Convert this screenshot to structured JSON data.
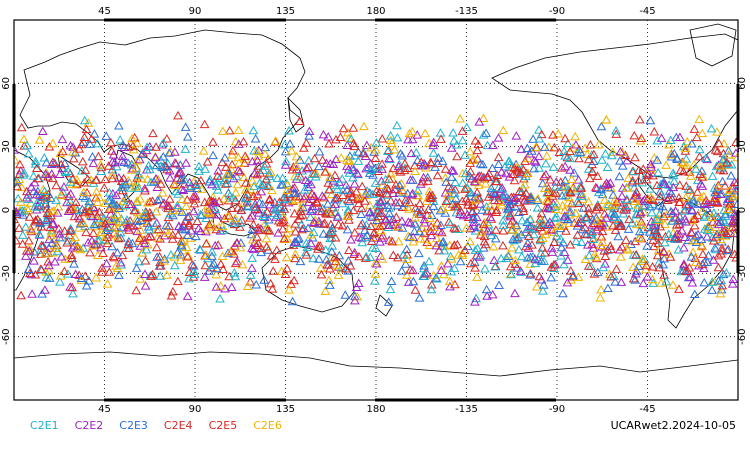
{
  "chart_data": {
    "type": "scatter",
    "projection": "cylindrical",
    "central_longitude": "180",
    "x_tick_labels": [
      "45",
      "90",
      "135",
      "180",
      "-135",
      "-90",
      "-45"
    ],
    "x_tick_lons": [
      45,
      90,
      135,
      180,
      225,
      270,
      315
    ],
    "y_tick_labels": [
      "-60",
      "-30",
      "0",
      "30",
      "60"
    ],
    "y_tick_lats": [
      -60,
      -30,
      0,
      30,
      60
    ],
    "lon_range": [
      0,
      360
    ],
    "lat_range": [
      -90,
      90
    ],
    "grid": "dotted",
    "marker": "triangle",
    "observation_lat_band": [
      -45,
      45
    ],
    "series": [
      {
        "name": "C2E1",
        "color": "#1fb3cc"
      },
      {
        "name": "C2E2",
        "color": "#a020c8"
      },
      {
        "name": "C2E3",
        "color": "#2b6fd6"
      },
      {
        "name": "C2E4",
        "color": "#d12a2a"
      },
      {
        "name": "C2E5",
        "color": "#e0261f"
      },
      {
        "name": "C2E6",
        "color": "#f0b400"
      }
    ],
    "annotation": "UCARwet2.2024-10-05"
  }
}
